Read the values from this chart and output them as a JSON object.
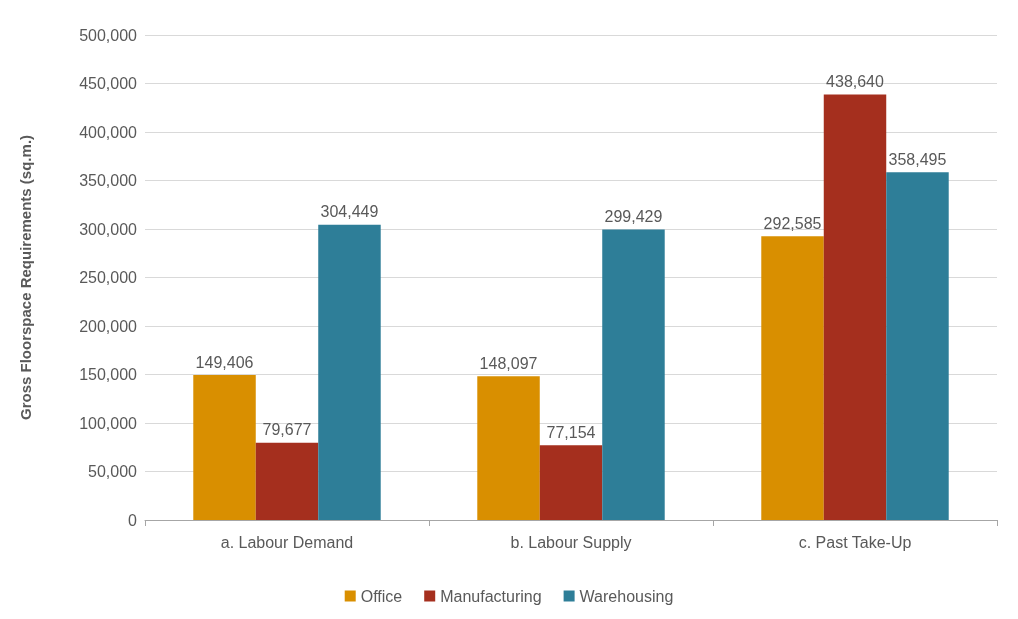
{
  "chart_data": {
    "type": "bar",
    "ylabel": "Gross Floorspace Requirements (sq.m.)",
    "categories": [
      "a. Labour Demand",
      "b. Labour Supply",
      "c. Past Take-Up"
    ],
    "series": [
      {
        "name": "Office",
        "color": "#d98f00",
        "values": [
          149406,
          148097,
          292585
        ],
        "value_labels": [
          "149,406",
          "148,097",
          "292,585"
        ]
      },
      {
        "name": "Manufacturing",
        "color": "#a52f1e",
        "values": [
          79677,
          77154,
          438640
        ],
        "value_labels": [
          "79,677",
          "77,154",
          "438,640"
        ]
      },
      {
        "name": "Warehousing",
        "color": "#2e7e98",
        "values": [
          304449,
          299429,
          358495
        ],
        "value_labels": [
          "304,449",
          "299,429",
          "358,495"
        ]
      }
    ],
    "ylim": [
      0,
      500000
    ],
    "yticks": [
      0,
      {
        "value": 50000,
        "label": "50,000"
      },
      {
        "value": 100000,
        "label": "100,000"
      },
      {
        "value": 150000,
        "label": "150,000"
      },
      {
        "value": 200000,
        "label": "200,000"
      },
      {
        "value": 250000,
        "label": "250,000"
      },
      {
        "value": 300000,
        "label": "300,000"
      },
      {
        "value": 350000,
        "label": "350,000"
      },
      {
        "value": 400000,
        "label": "400,000"
      },
      {
        "value": 450000,
        "label": "450,000"
      },
      {
        "value": 500000,
        "label": "500,000"
      }
    ],
    "grid": "y",
    "legend": "bottom"
  }
}
